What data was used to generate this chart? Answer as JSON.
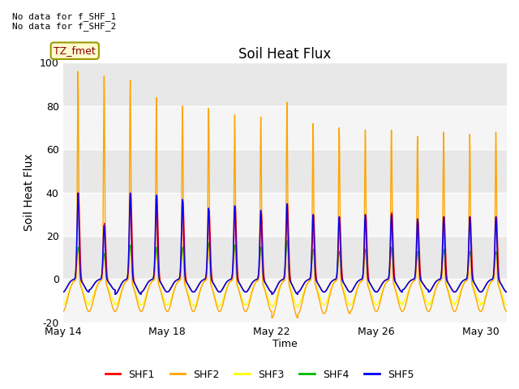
{
  "title": "Soil Heat Flux",
  "xlabel": "Time",
  "ylabel": "Soil Heat Flux",
  "ylim": [
    -20,
    100
  ],
  "xlim_days": [
    0,
    17
  ],
  "annotation_top": "No data for f_SHF_1\nNo data for f_SHF_2",
  "tz_label": "TZ_fmet",
  "xtick_labels": [
    "May 14",
    "May 18",
    "May 22",
    "May 26",
    "May 30"
  ],
  "xtick_positions": [
    0,
    4,
    8,
    12,
    16
  ],
  "ytick_labels": [
    "-20",
    "0",
    "20",
    "40",
    "60",
    "80",
    "100"
  ],
  "ytick_values": [
    -20,
    0,
    20,
    40,
    60,
    80,
    100
  ],
  "legend_entries": [
    {
      "label": "SHF1",
      "color": "#FF0000"
    },
    {
      "label": "SHF2",
      "color": "#FFA500"
    },
    {
      "label": "SHF3",
      "color": "#FFFF00"
    },
    {
      "label": "SHF4",
      "color": "#00BB00"
    },
    {
      "label": "SHF5",
      "color": "#0000FF"
    }
  ],
  "plot_bg_color": "#EBEBEB",
  "shf2_day_amps": [
    97,
    95,
    93,
    85,
    81,
    80,
    77,
    76,
    83,
    73,
    71,
    70,
    70,
    67,
    69,
    68,
    69
  ],
  "shf1_day_amps": [
    40,
    26,
    40,
    39,
    36,
    32,
    34,
    31,
    35,
    30,
    29,
    30,
    31,
    27,
    29,
    29,
    29
  ],
  "shf3_day_amps": [
    15,
    12,
    16,
    15,
    15,
    17,
    16,
    15,
    22,
    14,
    13,
    14,
    14,
    12,
    13,
    12,
    13
  ],
  "shf4_day_amps": [
    15,
    12,
    16,
    15,
    15,
    17,
    16,
    15,
    18,
    14,
    13,
    14,
    15,
    13,
    14,
    13,
    13
  ],
  "shf5_day_amps": [
    40,
    25,
    40,
    39,
    37,
    33,
    34,
    32,
    35,
    30,
    29,
    30,
    30,
    28,
    29,
    29,
    29
  ],
  "shf2_trough_amps": [
    15,
    15,
    15,
    15,
    15,
    15,
    15,
    15,
    18,
    16,
    16,
    15,
    15,
    15,
    15,
    15,
    15
  ],
  "shf1_trough_amps": [
    6,
    5,
    7,
    6,
    6,
    6,
    6,
    6,
    7,
    6,
    6,
    6,
    6,
    5,
    6,
    6,
    6
  ],
  "shf3_trough_amps": [
    12,
    11,
    12,
    12,
    12,
    13,
    12,
    12,
    13,
    12,
    12,
    12,
    12,
    11,
    12,
    11,
    12
  ],
  "shf4_trough_amps": [
    6,
    5,
    7,
    6,
    6,
    6,
    6,
    6,
    7,
    6,
    6,
    6,
    6,
    5,
    6,
    6,
    6
  ],
  "shf5_trough_amps": [
    6,
    5,
    7,
    6,
    6,
    6,
    6,
    6,
    7,
    6,
    6,
    6,
    6,
    5,
    6,
    6,
    6
  ]
}
